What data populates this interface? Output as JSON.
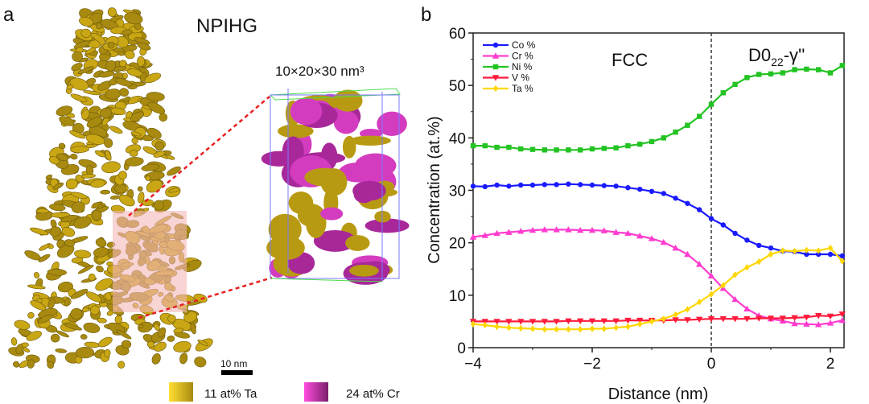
{
  "panel_a": {
    "label": "a",
    "title": "NPIHG",
    "box_label": "10×20×30 nm³",
    "scale_bar": "10 nm",
    "legend": [
      {
        "label": "11 at% Ta",
        "color": "#d9b81a"
      },
      {
        "label": "24 at% Cr",
        "color": "#c83cb4"
      }
    ]
  },
  "panel_b": {
    "label": "b"
  },
  "chart_data": {
    "type": "line",
    "xlabel": "Distance (nm)",
    "ylabel": "Concentration (at.%)",
    "xlim": [
      -4,
      2.23
    ],
    "ylim": [
      0,
      60
    ],
    "xticks": [
      "−4",
      "−2",
      "0",
      "2"
    ],
    "yticks": [
      "0",
      "10",
      "20",
      "30",
      "40",
      "50",
      "60"
    ],
    "legend_position": "top-left",
    "annotations": {
      "left_region": "FCC",
      "right_region_main": "D0",
      "right_region_sub": "22",
      "right_region_suffix": "-γ''",
      "interface_x": 0
    },
    "x": [
      -4,
      -3.8,
      -3.6,
      -3.4,
      -3.2,
      -3,
      -2.8,
      -2.6,
      -2.4,
      -2.2,
      -2,
      -1.8,
      -1.6,
      -1.4,
      -1.2,
      -1,
      -0.8,
      -0.6,
      -0.4,
      -0.2,
      0,
      0.2,
      0.4,
      0.6,
      0.8,
      1,
      1.2,
      1.4,
      1.6,
      1.8,
      2,
      2.2
    ],
    "series": [
      {
        "name": "Co %",
        "color": "#1a1aff",
        "marker": "circle",
        "values": [
          30.8,
          30.7,
          31.0,
          30.8,
          31.0,
          31.0,
          31.1,
          31.1,
          31.2,
          31.1,
          31.0,
          30.9,
          30.8,
          30.5,
          30.2,
          29.8,
          29.4,
          28.5,
          27.5,
          26.3,
          24.6,
          23.4,
          21.8,
          20.5,
          19.5,
          19.0,
          18.4,
          18.3,
          17.8,
          17.8,
          17.8,
          17.5
        ]
      },
      {
        "name": "Cr %",
        "color": "#ff3ccf",
        "marker": "triangle-up",
        "values": [
          21.1,
          21.4,
          21.8,
          22.0,
          22.2,
          22.4,
          22.5,
          22.5,
          22.5,
          22.4,
          22.4,
          22.3,
          22.0,
          21.8,
          21.3,
          20.8,
          20.1,
          19.0,
          17.8,
          15.9,
          13.7,
          11.3,
          9.2,
          7.4,
          6.1,
          5.5,
          5.1,
          4.6,
          4.5,
          4.4,
          4.7,
          5.2
        ]
      },
      {
        "name": "Ni %",
        "color": "#22c322",
        "marker": "square",
        "values": [
          38.5,
          38.5,
          38.2,
          38.2,
          37.9,
          37.8,
          37.7,
          37.7,
          37.7,
          37.7,
          37.9,
          38.0,
          38.1,
          38.5,
          38.8,
          39.3,
          40.0,
          41.1,
          42.4,
          44.1,
          46.4,
          48.6,
          50.2,
          51.5,
          52.1,
          52.2,
          52.4,
          53.0,
          53.1,
          53.0,
          52.4,
          53.8
        ]
      },
      {
        "name": "V %",
        "color": "#ff1a3c",
        "marker": "triangle-down",
        "values": [
          5.0,
          5.0,
          5.0,
          5.0,
          5.0,
          5.0,
          5.0,
          5.0,
          5.1,
          5.1,
          5.1,
          5.1,
          5.1,
          5.2,
          5.2,
          5.2,
          5.2,
          5.3,
          5.3,
          5.4,
          5.5,
          5.5,
          5.5,
          5.5,
          5.6,
          5.6,
          5.6,
          5.7,
          5.8,
          6.1,
          6.0,
          6.4
        ]
      },
      {
        "name": "Ta %",
        "color": "#ffd700",
        "marker": "diamond",
        "values": [
          4.5,
          4.3,
          4.0,
          3.8,
          3.7,
          3.6,
          3.5,
          3.5,
          3.5,
          3.5,
          3.6,
          3.6,
          3.8,
          4.0,
          4.5,
          5.0,
          5.5,
          6.3,
          7.3,
          8.7,
          10.2,
          11.9,
          13.9,
          15.3,
          16.4,
          17.8,
          18.5,
          18.4,
          18.6,
          18.5,
          19.0,
          16.5
        ]
      }
    ]
  }
}
